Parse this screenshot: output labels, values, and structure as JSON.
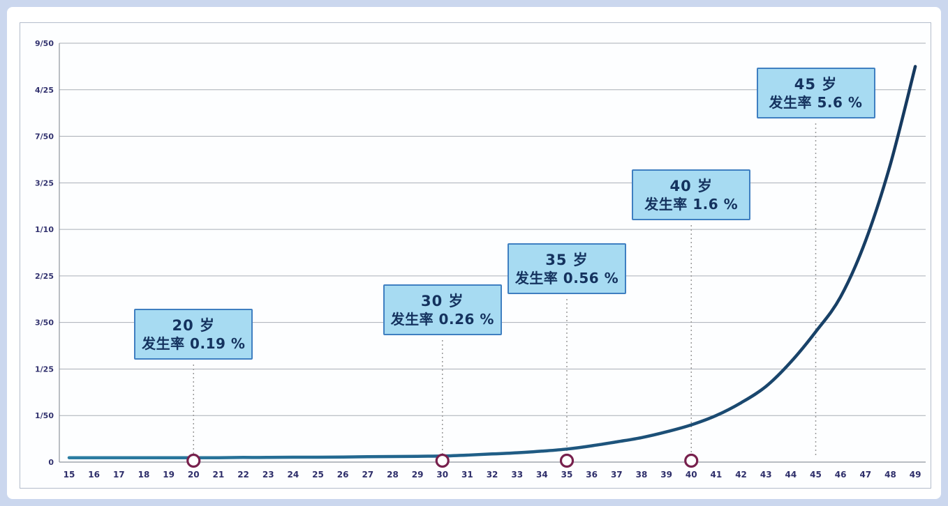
{
  "colors": {
    "page_background": "#cbd7ee",
    "card_background": "#ffffff",
    "panel_border": "#b3bccb",
    "gridline": "#a9aeb6",
    "axis": "#8f959d",
    "curve": "#1d4d74",
    "curve_teal": "#2b7da2",
    "callout_fill": "#a7dbf2",
    "callout_border": "#3f7fc1",
    "callout_text": "#14325e",
    "marker_stroke": "#77204d",
    "marker_fill": "#ffffff",
    "dotted_line": "#999999",
    "tick_label": "#2e2e6a"
  },
  "chart_data": {
    "type": "line",
    "title": "",
    "xlabel": "",
    "ylabel": "",
    "grid": true,
    "legend": "none",
    "x_axis_unit": "岁",
    "x_ticks": [
      15,
      16,
      17,
      18,
      19,
      20,
      21,
      22,
      23,
      24,
      25,
      26,
      27,
      28,
      29,
      30,
      31,
      32,
      33,
      34,
      35,
      36,
      37,
      38,
      39,
      40,
      41,
      42,
      43,
      44,
      45,
      46,
      47,
      48,
      49
    ],
    "y_tick_labels": [
      "9/50",
      "4/25",
      "7/50",
      "3/25",
      "1/10",
      "2/25",
      "3/50",
      "1/25",
      "1/50",
      "0"
    ],
    "y_tick_percent": [
      18,
      16,
      14,
      12,
      10,
      8,
      6,
      4,
      2,
      0
    ],
    "ylim_percent": [
      0,
      18
    ],
    "x": [
      15,
      16,
      17,
      18,
      19,
      20,
      21,
      22,
      23,
      24,
      25,
      26,
      27,
      28,
      29,
      30,
      31,
      32,
      33,
      34,
      35,
      36,
      37,
      38,
      39,
      40,
      41,
      42,
      43,
      44,
      45,
      46,
      47,
      48,
      49
    ],
    "series": [
      {
        "name": "发生率",
        "unit": "%",
        "values": [
          0.19,
          0.19,
          0.19,
          0.19,
          0.19,
          0.19,
          0.19,
          0.2,
          0.2,
          0.21,
          0.21,
          0.22,
          0.23,
          0.24,
          0.25,
          0.26,
          0.3,
          0.35,
          0.4,
          0.47,
          0.56,
          0.7,
          0.87,
          1.05,
          1.3,
          1.6,
          2.0,
          2.55,
          3.25,
          4.3,
          5.6,
          7.1,
          9.5,
          12.8,
          17.0
        ]
      }
    ],
    "annotations": [
      {
        "age": 20,
        "title": "20 岁",
        "text": "发生率 0.19 %",
        "rate_percent": 0.19,
        "marker_on_axis": true
      },
      {
        "age": 30,
        "title": "30 岁",
        "text": "发生率 0.26 %",
        "rate_percent": 0.26,
        "marker_on_axis": true
      },
      {
        "age": 35,
        "title": "35 岁",
        "text": "发生率 0.56 %",
        "rate_percent": 0.56,
        "marker_on_axis": true
      },
      {
        "age": 40,
        "title": "40 岁",
        "text": "发生率 1.6 %",
        "rate_percent": 1.6,
        "marker_on_axis": true
      },
      {
        "age": 45,
        "title": "45 岁",
        "text": "发生率 5.6 %",
        "rate_percent": 5.6,
        "marker_on_axis": false
      }
    ]
  }
}
